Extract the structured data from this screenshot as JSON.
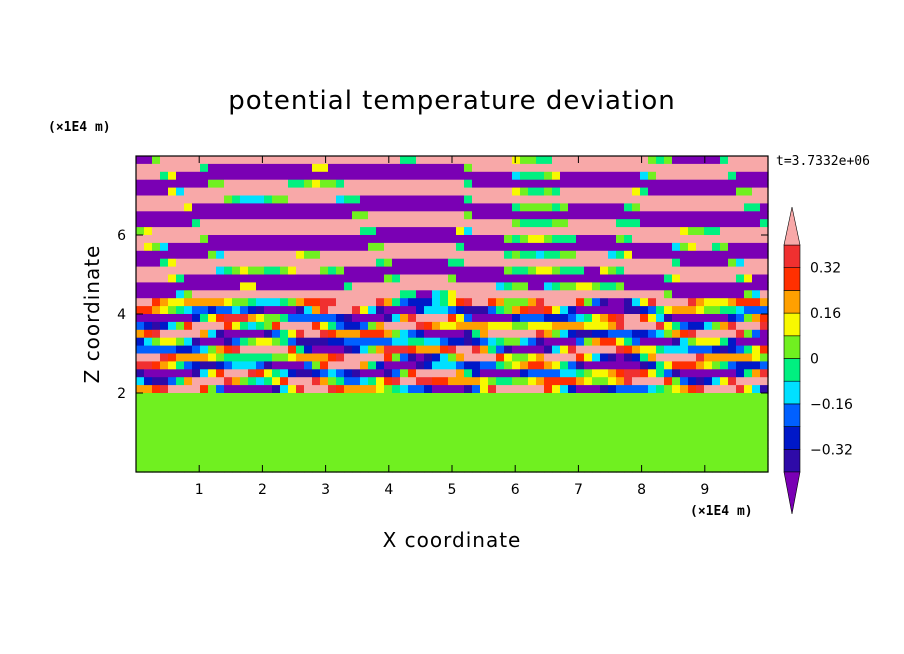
{
  "chart_data": {
    "type": "heatmap",
    "title": "potential temperature deviation",
    "xlabel": "X coordinate",
    "ylabel": "Z coordinate",
    "x_unit": "(×1E4 m)",
    "y_unit": "(×1E4 m)",
    "time_label": "t=3.7332e+06",
    "xlim": [
      0,
      10
    ],
    "ylim": [
      0,
      8
    ],
    "x_ticks": [
      1,
      2,
      3,
      4,
      5,
      6,
      7,
      8,
      9
    ],
    "y_ticks": [
      2,
      4,
      6
    ],
    "colorbar": {
      "labels": [
        "0.32",
        "0.16",
        "0",
        "−0.16",
        "−0.32"
      ],
      "label_values": [
        0.32,
        0.16,
        0,
        -0.16,
        -0.32
      ],
      "levels": [
        -0.4,
        -0.32,
        -0.24,
        -0.16,
        -0.08,
        0,
        0.08,
        0.16,
        0.24,
        0.32,
        0.4
      ],
      "colors": [
        "#7a00b4",
        "#2e0aa8",
        "#0018c8",
        "#0060ff",
        "#00e0ff",
        "#00f080",
        "#70f020",
        "#f8f800",
        "#ffa000",
        "#ff3000",
        "#f03030",
        "#f8a8a8"
      ]
    },
    "regions": [
      {
        "name": "lower layer",
        "z_range": [
          0,
          2
        ],
        "values": "mostly 0 to 0.08 (green)"
      },
      {
        "name": "mixed band",
        "z_range": [
          2,
          4.5
        ],
        "values": "mixed -0.4 to 0.4"
      },
      {
        "name": "upper layers",
        "z_range": [
          4.5,
          8
        ],
        "values": "alternating bands of -0.4 (purple) and 0.4 (pink)"
      }
    ]
  }
}
